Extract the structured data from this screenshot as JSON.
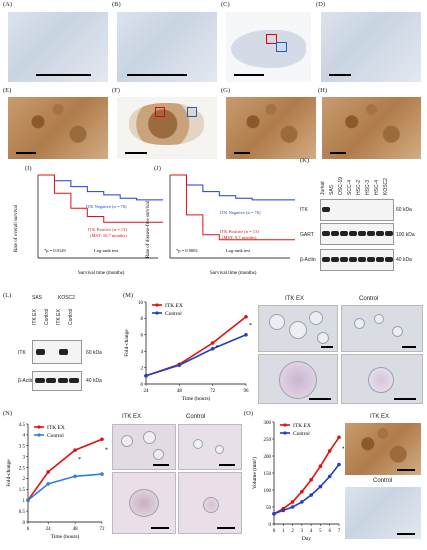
{
  "panels": {
    "A": "(A)",
    "B": "(B)",
    "C": "(C)",
    "D": "(D)",
    "E": "(E)",
    "F": "(F)",
    "G": "(G)",
    "H": "(H)",
    "I": "(I)",
    "J": "(J)",
    "K": "(K)",
    "L": "(L)",
    "M": "(M)",
    "N": "(N)",
    "O": "(O)"
  },
  "km_I": {
    "ylabel": "Rate of overall survival",
    "xlabel": "Survival time (months)",
    "neg": "ITK Negative  (n = 76)",
    "pos": "ITK Positive  (n = 13)",
    "pos_mst": "(MST: 16.7 months)",
    "p": "*p = 0.0129",
    "test": "Log-rank test"
  },
  "km_J": {
    "ylabel": "Rate of disease-free survival",
    "xlabel": "Survival time (months)",
    "neg": "ITK Negative  (n = 76)",
    "pos": "ITK Positive  (n = 13)",
    "pos_mst": "(MST: 9.7 months)",
    "p": "*p = 0.0002",
    "test": "Log-rank test"
  },
  "blot_K": {
    "lanes": [
      "Jurkat",
      "SAS",
      "OSC-19",
      "SCC-4",
      "HSC-2",
      "HSC-3",
      "HSC-4",
      "KOSC2"
    ],
    "rows": [
      "ITK",
      "GART",
      "β-Actin"
    ],
    "kda": [
      "60 kDa",
      "100 kDa",
      "40 kDa"
    ]
  },
  "blot_L": {
    "groups": [
      "SAS",
      "KOSC2"
    ],
    "lanes": [
      "ITK EX",
      "Control",
      "ITK EX",
      "Control"
    ],
    "rows": [
      "ITK",
      "β-Actin"
    ],
    "kda": [
      "60 kDa",
      "40 kDa"
    ]
  },
  "colony_M": {
    "itk": "ITK EX",
    "control": "Control"
  },
  "colony_N": {
    "itk": "ITK EX",
    "control": "Control"
  },
  "tumor_O": {
    "itk": "ITK EX",
    "control": "Control"
  },
  "chart_data": [
    {
      "id": "M",
      "type": "line",
      "x": [
        24,
        48,
        72,
        96
      ],
      "xlabel": "Time (hours)",
      "ylabel": "Fold-change",
      "ylim": [
        0,
        10
      ],
      "yticks": [
        0,
        2,
        4,
        6,
        8,
        10
      ],
      "series": [
        {
          "name": "ITK EX",
          "color": "#e01010",
          "values": [
            1,
            2.4,
            5.0,
            8.2
          ]
        },
        {
          "name": "Control",
          "color": "#2040c0",
          "values": [
            1,
            2.3,
            4.3,
            6.0
          ]
        }
      ],
      "annotations": [
        "*",
        "*"
      ]
    },
    {
      "id": "N",
      "type": "line",
      "x": [
        6,
        24,
        48,
        72
      ],
      "xlabel": "Time (hours)",
      "ylabel": "Fold-change",
      "ylim": [
        0,
        4.5
      ],
      "yticks": [
        0,
        0.5,
        1,
        1.5,
        2,
        2.5,
        3,
        3.5,
        4,
        4.5
      ],
      "series": [
        {
          "name": "ITK EX",
          "color": "#e01010",
          "values": [
            1.0,
            2.3,
            3.3,
            3.8
          ]
        },
        {
          "name": "Control",
          "color": "#3080e0",
          "values": [
            1.0,
            1.75,
            2.1,
            2.2
          ]
        }
      ],
      "annotations": [
        "*",
        "*"
      ]
    },
    {
      "id": "O",
      "type": "line",
      "x": [
        0,
        1,
        2,
        3,
        4,
        5,
        6,
        7
      ],
      "xlabel": "Day",
      "ylabel": "Volume (mm³)",
      "ylim": [
        0,
        300
      ],
      "yticks": [
        0,
        50,
        100,
        150,
        200,
        250,
        300
      ],
      "series": [
        {
          "name": "ITK EX",
          "color": "#e01010",
          "values": [
            30,
            45,
            65,
            95,
            130,
            170,
            215,
            255
          ]
        },
        {
          "name": "Control",
          "color": "#2040c0",
          "values": [
            30,
            40,
            50,
            65,
            85,
            110,
            140,
            175
          ]
        }
      ],
      "annotations": [
        "*"
      ]
    },
    {
      "id": "I",
      "type": "line",
      "xlabel": "Survival time (months)",
      "ylabel": "Rate of overall survival",
      "ylim": [
        0,
        1.0
      ],
      "xlim": [
        0,
        150
      ],
      "series": [
        {
          "name": "ITK Negative",
          "color": "#1a3ed0",
          "values": [
            1.0,
            0.93,
            0.86,
            0.8,
            0.76,
            0.72,
            0.7,
            0.7
          ]
        },
        {
          "name": "ITK Positive",
          "color": "#e01010",
          "values": [
            1.0,
            0.78,
            0.6,
            0.5,
            0.43,
            0.43,
            0.43,
            0.43
          ]
        }
      ]
    },
    {
      "id": "J",
      "type": "line",
      "xlabel": "Survival time (months)",
      "ylabel": "Rate of disease-free survival",
      "ylim": [
        0,
        1.0
      ],
      "xlim": [
        0,
        150
      ],
      "series": [
        {
          "name": "ITK Negative",
          "color": "#1a3ed0",
          "values": [
            1.0,
            0.88,
            0.8,
            0.75,
            0.72,
            0.7,
            0.7,
            0.7
          ]
        },
        {
          "name": "ITK Positive",
          "color": "#e01010",
          "values": [
            1.0,
            0.52,
            0.28,
            0.22,
            0.22,
            0.22,
            0.22,
            0.22
          ]
        }
      ]
    }
  ]
}
